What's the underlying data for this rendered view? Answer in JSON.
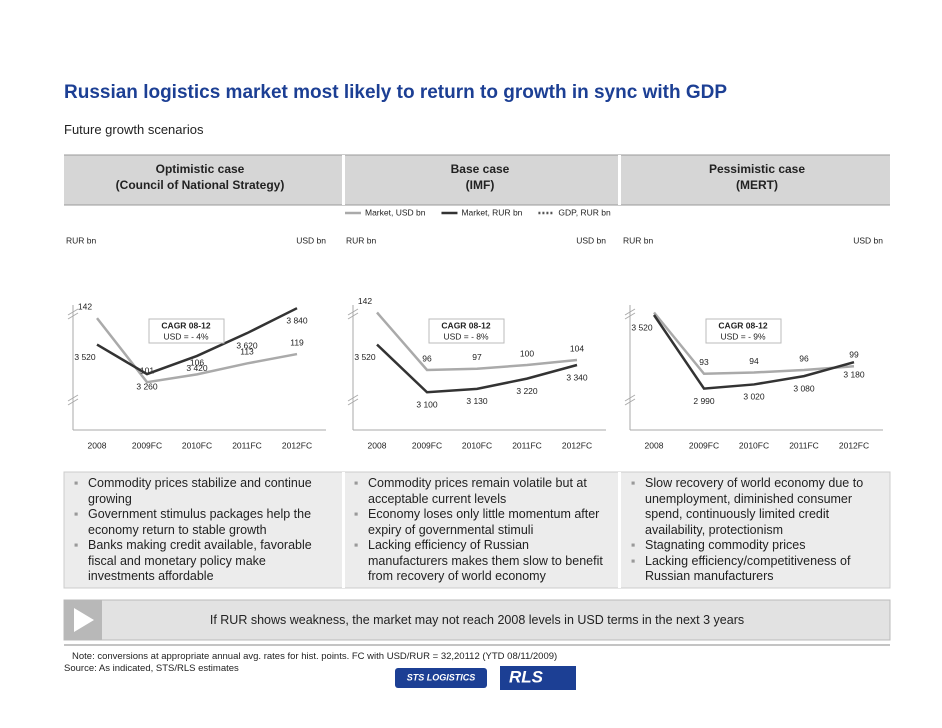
{
  "header": {
    "title": "Russian logistics market most likely to return to growth in sync with GDP",
    "subtitle": "Future growth scenarios"
  },
  "legend": {
    "gdp": {
      "name": "GDP, RUR bn",
      "color": "#555555"
    }
  },
  "panels": [
    {
      "heading": [
        "Optimistic case",
        "(Council of National Strategy)"
      ],
      "bullets": [
        "Commodity prices stabilize and continue growing",
        "Government stimulus packages help the economy return to stable growth",
        "Banks making credit available, favorable fiscal and monetary policy make investments affordable"
      ]
    },
    {
      "heading": [
        "Base case",
        "(IMF)"
      ],
      "bullets": [
        "Commodity prices remain volatile but at acceptable current levels",
        "Economy loses only little momentum after expiry of governmental stimuli",
        "Lacking efficiency of Russian manufacturers makes them slow to benefit from recovery of world economy"
      ]
    },
    {
      "heading": [
        "Pessimistic case",
        "(MERT)"
      ],
      "bullets": [
        "Slow recovery of world economy due to unemployment, diminished consumer spend, continuously limited credit availability, protectionism",
        "Stagnating commodity prices",
        "Lacking efficiency/competitiveness of Russian manufacturers"
      ]
    }
  ],
  "chart_data": [
    {
      "type": "line",
      "ylabel": "RUR bn",
      "y2label": "USD bn",
      "categories": [
        "2008",
        "2009FC",
        "2010FC",
        "2011FC",
        "2012FC"
      ],
      "annotation": {
        "title": "CAGR 08-12",
        "text": "USD = - 4%"
      },
      "ylim": [
        2900,
        4000
      ],
      "y2lim": [
        80,
        160
      ],
      "series": [
        {
          "name": "Market, USD bn",
          "color": "#aaaaaa",
          "axis": "y2",
          "values": [
            142,
            101,
            106,
            113,
            119
          ]
        },
        {
          "name": "Market, RUR bn",
          "color": "#333333",
          "values": [
            3520,
            3260,
            3420,
            3620,
            3840
          ],
          "value_labels": [
            "3 520",
            "3 260",
            "3 420",
            "3 620",
            "3 840"
          ]
        }
      ]
    },
    {
      "type": "line",
      "ylabel": "RUR bn",
      "y2label": "USD bn",
      "categories": [
        "2008",
        "2009FC",
        "2010FC",
        "2011FC",
        "2012FC"
      ],
      "annotation": {
        "title": "CAGR 08-12",
        "text": "USD = - 8%"
      },
      "ylim": [
        2900,
        4000
      ],
      "y2lim": [
        60,
        160
      ],
      "series": [
        {
          "name": "Market, USD bn",
          "color": "#aaaaaa",
          "axis": "y2",
          "values": [
            142,
            96,
            97,
            100,
            104
          ]
        },
        {
          "name": "Market, RUR bn",
          "color": "#333333",
          "values": [
            3520,
            3100,
            3130,
            3220,
            3340
          ],
          "value_labels": [
            "3 520",
            "3 100",
            "3 130",
            "3 220",
            "3 340"
          ]
        }
      ]
    },
    {
      "type": "line",
      "ylabel": "RUR bn",
      "y2label": "USD bn",
      "categories": [
        "2008",
        "2009FC",
        "2010FC",
        "2011FC",
        "2012FC"
      ],
      "annotation": {
        "title": "CAGR 08-12",
        "text": "USD = - 9%"
      },
      "ylim": [
        2800,
        3700
      ],
      "y2lim": [
        60,
        160
      ],
      "series": [
        {
          "name": "Market, USD bn",
          "color": "#aaaaaa",
          "axis": "y2",
          "values": [
            142,
            93,
            94,
            96,
            99
          ],
          "value_labels": [
            null,
            "93",
            "94",
            "96",
            "99"
          ]
        },
        {
          "name": "Market, RUR bn",
          "color": "#333333",
          "values": [
            3520,
            2990,
            3020,
            3080,
            3180
          ],
          "value_labels": [
            "3 520",
            "2 990",
            "3 020",
            "3 080",
            "3 180"
          ]
        }
      ]
    }
  ],
  "conclusion": "If RUR shows weakness, the market may not reach 2008 levels in USD terms in the next 3 years",
  "note": "Note: conversions at appropriate annual avg. rates for hist. points. FC with USD/RUR = 32,20112 (YTD 08/11/2009)",
  "source": "Source: As indicated, STS/RLS estimates",
  "logos": [
    "STS LOGISTICS",
    "RLS"
  ]
}
